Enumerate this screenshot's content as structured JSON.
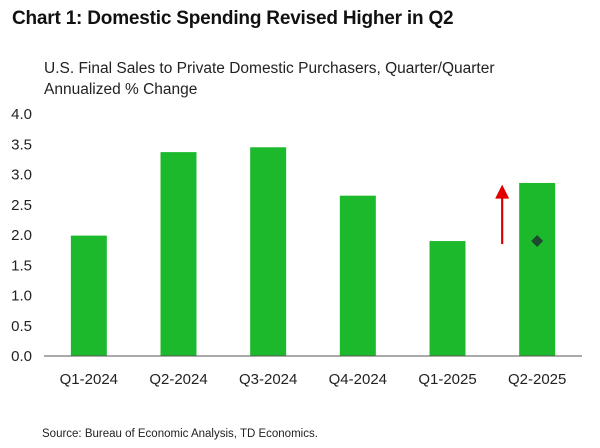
{
  "title": "Chart 1: Domestic Spending Revised Higher in Q2",
  "subtitle_lines": [
    "U.S. Final Sales to Private Domestic Purchasers, Quarter/Quarter",
    "Annualized % Change"
  ],
  "source": "Source: Bureau of Economic Analysis, TD Economics.",
  "chart_data": {
    "type": "bar",
    "categories": [
      "Q1-2024",
      "Q2-2024",
      "Q3-2024",
      "Q4-2024",
      "Q1-2025",
      "Q2-2025"
    ],
    "series": [
      {
        "values": [
          1.99,
          3.37,
          3.45,
          2.65,
          1.9,
          2.86
        ],
        "color": "#1db92d"
      }
    ],
    "previous_estimate": {
      "category": "Q2-2025",
      "value": 1.9,
      "marker": "diamond",
      "color": "#1e4a30"
    },
    "revision_arrow": {
      "from": 1.85,
      "to": 2.8,
      "direction": "up",
      "color": "#e00000"
    },
    "ylim": [
      0,
      4
    ],
    "yticks": [
      "0.0",
      "0.5",
      "1.0",
      "1.5",
      "2.0",
      "2.5",
      "3.0",
      "3.5",
      "4.0"
    ],
    "ytick_values": [
      0,
      0.5,
      1,
      1.5,
      2,
      2.5,
      3,
      3.5,
      4
    ],
    "grid": false
  }
}
